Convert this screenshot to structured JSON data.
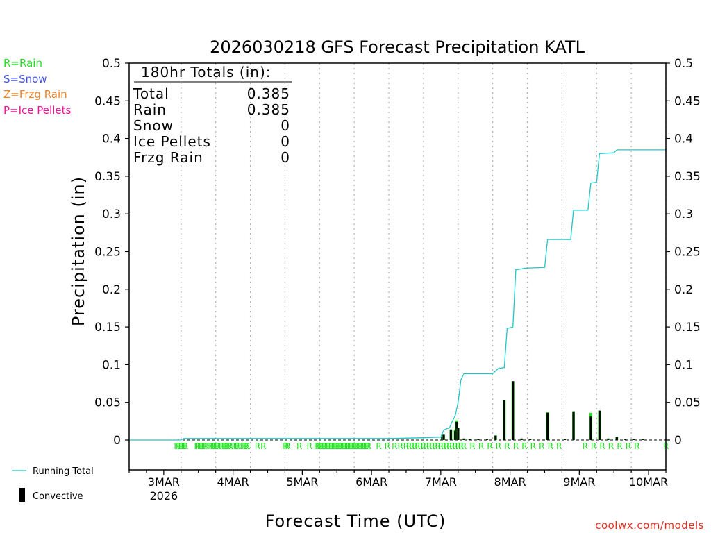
{
  "chart_data": {
    "type": "bar+line",
    "title": "2026030218 GFS Forecast Precipitation KATL",
    "xlabel": "Forecast Time (UTC)",
    "ylabel": "Precipitation (in)",
    "ylim": [
      -0.04,
      0.5
    ],
    "yticks": [
      0,
      0.05,
      0.1,
      0.15,
      0.2,
      0.25,
      0.3,
      0.35,
      0.4,
      0.45,
      0.5
    ],
    "ytick_labels": [
      "0",
      "0.05",
      "0.1",
      "0.15",
      "0.2",
      "0.25",
      "0.3",
      "0.35",
      "0.4",
      "0.45",
      "0.5"
    ],
    "xlim_hours": [
      -6,
      180
    ],
    "x_unit": "forecast hours from 2026-03-02 18Z",
    "xticks": [
      {
        "hour": 6,
        "label": "3MAR",
        "sub": "2026"
      },
      {
        "hour": 30,
        "label": "4MAR",
        "sub": ""
      },
      {
        "hour": 54,
        "label": "5MAR",
        "sub": ""
      },
      {
        "hour": 78,
        "label": "6MAR",
        "sub": ""
      },
      {
        "hour": 102,
        "label": "7MAR",
        "sub": ""
      },
      {
        "hour": 126,
        "label": "8MAR",
        "sub": ""
      },
      {
        "hour": 150,
        "label": "9MAR",
        "sub": ""
      },
      {
        "hour": 174,
        "label": "10MAR",
        "sub": ""
      }
    ],
    "legend_types": [
      {
        "text": "R=Rain",
        "color": "#22dd22"
      },
      {
        "text": "S=Snow",
        "color": "#4455ee"
      },
      {
        "text": "Z=Frzg Rain",
        "color": "#f08020"
      },
      {
        "text": "P=Ice Pellets",
        "color": "#ee1199"
      }
    ],
    "legend_series": {
      "running_total": "Running Total",
      "convective": "Convective"
    },
    "totals": {
      "header": "180hr Totals (in):",
      "rows": [
        {
          "label": "Total",
          "value": "0.385"
        },
        {
          "label": "Rain",
          "value": "0.385"
        },
        {
          "label": "Snow",
          "value": "0"
        },
        {
          "label": "Ice Pellets",
          "value": "0"
        },
        {
          "label": "Frzg Rain",
          "value": "0"
        }
      ]
    },
    "running_total": [
      [
        -6,
        0
      ],
      [
        12,
        0
      ],
      [
        13,
        0.002
      ],
      [
        84,
        0.002
      ],
      [
        96,
        0.003
      ],
      [
        102,
        0.004
      ],
      [
        103,
        0.013
      ],
      [
        104,
        0.015
      ],
      [
        105,
        0.016
      ],
      [
        106,
        0.025
      ],
      [
        107,
        0.032
      ],
      [
        108,
        0.05
      ],
      [
        109,
        0.08
      ],
      [
        110,
        0.088
      ],
      [
        120,
        0.088
      ],
      [
        122,
        0.095
      ],
      [
        124,
        0.096
      ],
      [
        125,
        0.148
      ],
      [
        127,
        0.15
      ],
      [
        128,
        0.226
      ],
      [
        130,
        0.227
      ],
      [
        131,
        0.228
      ],
      [
        138,
        0.229
      ],
      [
        139,
        0.266
      ],
      [
        147,
        0.266
      ],
      [
        148,
        0.305
      ],
      [
        153,
        0.305
      ],
      [
        154,
        0.341
      ],
      [
        156,
        0.342
      ],
      [
        157,
        0.38
      ],
      [
        162,
        0.381
      ],
      [
        163,
        0.385
      ],
      [
        180,
        0.385
      ]
    ],
    "bars": [
      {
        "hour": 102.5,
        "total": 0.004,
        "conv": 0.004
      },
      {
        "hour": 103.0,
        "total": 0.007,
        "conv": 0.007
      },
      {
        "hour": 105.5,
        "total": 0.014,
        "conv": 0.014
      },
      {
        "hour": 107.0,
        "total": 0.014,
        "conv": 0.012
      },
      {
        "hour": 107.5,
        "total": 0.026,
        "conv": 0.024
      },
      {
        "hour": 108.0,
        "total": 0.016,
        "conv": 0.016
      },
      {
        "hour": 110.0,
        "total": 0.002,
        "conv": 0.002
      },
      {
        "hour": 112.0,
        "total": 0.001,
        "conv": 0.001
      },
      {
        "hour": 115.0,
        "total": 0.001,
        "conv": 0.001
      },
      {
        "hour": 118.0,
        "total": 0.001,
        "conv": 0.001
      },
      {
        "hour": 121.0,
        "total": 0.006,
        "conv": 0.006
      },
      {
        "hour": 124.0,
        "total": 0.053,
        "conv": 0.053
      },
      {
        "hour": 127.0,
        "total": 0.078,
        "conv": 0.078
      },
      {
        "hour": 130.0,
        "total": 0.002,
        "conv": 0.002
      },
      {
        "hour": 133.0,
        "total": 0.001,
        "conv": 0.001
      },
      {
        "hour": 139.0,
        "total": 0.037,
        "conv": 0.036
      },
      {
        "hour": 145.0,
        "total": 0.001,
        "conv": 0.001
      },
      {
        "hour": 148.0,
        "total": 0.038,
        "conv": 0.038
      },
      {
        "hour": 154.0,
        "total": 0.036,
        "conv": 0.031
      },
      {
        "hour": 157.0,
        "total": 0.039,
        "conv": 0.039
      },
      {
        "hour": 160.0,
        "total": 0.002,
        "conv": 0.002
      },
      {
        "hour": 163.0,
        "total": 0.004,
        "conv": 0.004
      },
      {
        "hour": 166.0,
        "total": 0.001,
        "conv": 0.001
      },
      {
        "hour": 169.0,
        "total": 0.001,
        "conv": 0.001
      },
      {
        "hour": 172.0,
        "total": 0.001,
        "conv": 0.001
      }
    ],
    "type_marks": {
      "letter": "R",
      "hours": [
        10.5,
        11,
        11.5,
        12,
        12.5,
        13,
        13.5,
        17.5,
        18,
        18.5,
        19,
        19.5,
        20,
        20.5,
        22,
        22.5,
        23,
        23.5,
        24,
        24.5,
        25,
        26,
        26.5,
        27,
        27.5,
        28,
        28.5,
        29,
        30.5,
        31,
        31.5,
        32,
        33.5,
        34,
        34.5,
        35,
        38.5,
        40.5,
        48,
        48.5,
        49,
        53,
        56.5,
        59,
        59.5,
        60,
        60.5,
        61,
        61.5,
        62,
        62.5,
        63,
        63.5,
        64,
        64.5,
        65,
        65.5,
        66,
        66.5,
        67,
        67.5,
        68,
        68.5,
        69,
        69.5,
        70,
        70.5,
        71,
        71.5,
        72,
        72.5,
        73,
        73.5,
        74,
        74.5,
        75,
        75.5,
        76,
        76.5,
        77,
        80.5,
        83.5,
        86,
        88,
        90,
        91,
        92,
        93,
        94,
        95,
        96,
        97,
        98,
        99,
        100,
        101,
        102,
        103,
        104,
        105,
        106,
        107,
        108,
        109,
        110,
        113,
        116,
        119,
        122,
        125,
        128,
        131,
        134,
        137,
        140,
        143,
        152,
        155,
        158,
        161,
        164,
        167,
        170,
        180
      ]
    }
  },
  "legend_texts": {
    "running_total": "Running Total",
    "convective": "Convective"
  },
  "watermark": "coolwx.com/models",
  "colors": {
    "running_total": "#1ec8c8",
    "rain": "#22dd22",
    "convective": "#000000",
    "grid": "#b0b0b0"
  }
}
